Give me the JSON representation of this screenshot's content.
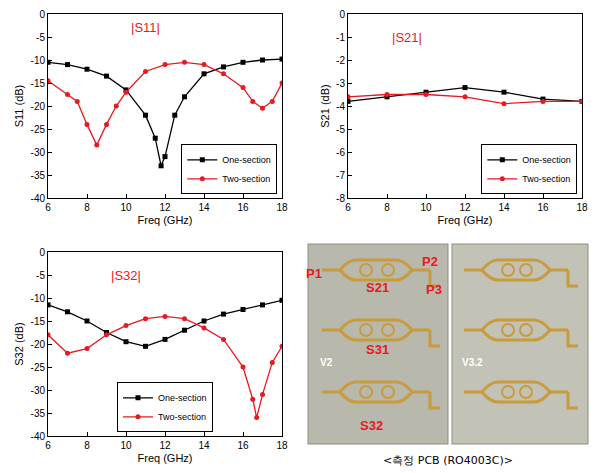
{
  "chart_data": [
    {
      "type": "line",
      "ylabel": "S11 (dB)",
      "xlabel": "Freq (GHz)",
      "xlim": [
        6,
        18
      ],
      "xticks": [
        6,
        8,
        10,
        12,
        14,
        16,
        18
      ],
      "ylim": [
        -40,
        0
      ],
      "yticks": [
        -40,
        -35,
        -30,
        -25,
        -20,
        -15,
        -10,
        -5,
        0
      ],
      "grid": false,
      "legend": "lower right",
      "annotations": [
        {
          "text": "|S11|",
          "x": 11,
          "y": -3,
          "color": "#e8191f"
        }
      ],
      "series": [
        {
          "name": "One-section",
          "color": "#000000",
          "marker": "square",
          "x": [
            6,
            7,
            8,
            9,
            10,
            11,
            11.5,
            11.8,
            12,
            12.5,
            13,
            14,
            15,
            16,
            17,
            18
          ],
          "values": [
            -10.5,
            -11,
            -12,
            -13.5,
            -16.5,
            -22,
            -27,
            -33,
            -31,
            -22,
            -18,
            -13,
            -11.5,
            -10.5,
            -10,
            -9.8
          ]
        },
        {
          "name": "Two-section",
          "color": "#e8191f",
          "marker": "circle",
          "x": [
            6,
            7,
            7.5,
            8,
            8.5,
            9,
            9.5,
            10,
            11,
            12,
            13,
            14,
            15,
            16,
            16.5,
            17,
            17.5,
            18
          ],
          "values": [
            -14.5,
            -17.5,
            -19,
            -24,
            -28.5,
            -24,
            -20,
            -17,
            -12.5,
            -11,
            -10.5,
            -11,
            -13,
            -16,
            -19,
            -20.5,
            -19,
            -15
          ]
        }
      ]
    },
    {
      "type": "line",
      "ylabel": "S21 (dB)",
      "xlabel": "Freq (GHz)",
      "xlim": [
        6,
        18
      ],
      "xticks": [
        6,
        8,
        10,
        12,
        14,
        16,
        18
      ],
      "ylim": [
        -8,
        0
      ],
      "yticks": [
        -8,
        -7,
        -6,
        -5,
        -4,
        -3,
        -2,
        -1,
        0
      ],
      "grid": false,
      "legend": "lower right",
      "annotations": [
        {
          "text": "|S21|",
          "x": 9,
          "y": -1,
          "color": "#e8191f"
        }
      ],
      "series": [
        {
          "name": "One-section",
          "color": "#000000",
          "marker": "square",
          "x": [
            6,
            8,
            10,
            12,
            14,
            16,
            18
          ],
          "values": [
            -3.8,
            -3.6,
            -3.4,
            -3.2,
            -3.4,
            -3.7,
            -3.8
          ]
        },
        {
          "name": "Two-section",
          "color": "#e8191f",
          "marker": "circle",
          "x": [
            6,
            8,
            10,
            12,
            14,
            16,
            18
          ],
          "values": [
            -3.6,
            -3.5,
            -3.5,
            -3.6,
            -3.9,
            -3.8,
            -3.8
          ]
        }
      ]
    },
    {
      "type": "line",
      "ylabel": "S32 (dB)",
      "xlabel": "Freq (GHz)",
      "xlim": [
        6,
        18
      ],
      "xticks": [
        6,
        8,
        10,
        12,
        14,
        16,
        18
      ],
      "ylim": [
        -40,
        0
      ],
      "yticks": [
        -40,
        -35,
        -30,
        -25,
        -20,
        -15,
        -10,
        -5,
        0
      ],
      "grid": false,
      "legend": "bottom",
      "annotations": [
        {
          "text": "|S32|",
          "x": 10,
          "y": -5,
          "color": "#e8191f"
        }
      ],
      "series": [
        {
          "name": "One-section",
          "color": "#000000",
          "marker": "square",
          "x": [
            6,
            7,
            8,
            9,
            10,
            11,
            12,
            13,
            14,
            15,
            16,
            17,
            18
          ],
          "values": [
            -11.5,
            -13,
            -15,
            -17.5,
            -19.5,
            -20.5,
            -19,
            -17,
            -15,
            -13.5,
            -12.5,
            -11.5,
            -10.5
          ]
        },
        {
          "name": "Two-section",
          "color": "#e8191f",
          "marker": "circle",
          "x": [
            6,
            7,
            8,
            9,
            10,
            11,
            12,
            13,
            14,
            15,
            16,
            16.5,
            16.7,
            17,
            17.5,
            18
          ],
          "values": [
            -18,
            -22,
            -21,
            -18,
            -16,
            -14.5,
            -14,
            -14.5,
            -16.5,
            -19,
            -25,
            -32,
            -36,
            -31,
            -24,
            -20.5
          ]
        }
      ]
    }
  ],
  "photo": {
    "labels": [
      {
        "text": "P1",
        "color": "#e8191f"
      },
      {
        "text": "P2",
        "color": "#e8191f"
      },
      {
        "text": "P3",
        "color": "#e8191f"
      },
      {
        "text": "S21",
        "color": "#e8191f"
      },
      {
        "text": "S31",
        "color": "#e8191f"
      },
      {
        "text": "S32",
        "color": "#e8191f"
      },
      {
        "text": "V2",
        "color": "#ffffff"
      },
      {
        "text": "V3.2",
        "color": "#ffffff"
      }
    ],
    "caption": "<측정 PCB (RO4003C)>"
  }
}
